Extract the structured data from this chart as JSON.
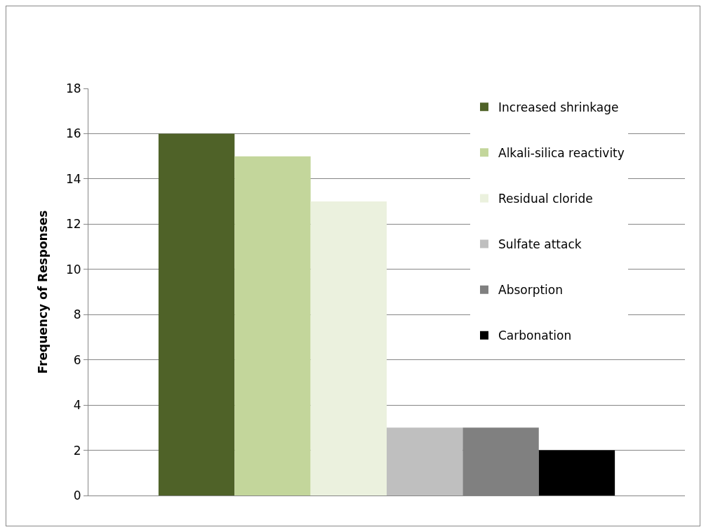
{
  "chart_data": {
    "type": "bar",
    "ylabel": "Frequency of Responses",
    "categories": [
      null
    ],
    "series": [
      {
        "name": "Increased shrinkage",
        "color": "#4f6228",
        "values": [
          16
        ]
      },
      {
        "name": "Alkali-silica reactivity",
        "color": "#c3d69b",
        "values": [
          15
        ]
      },
      {
        "name": "Residual cloride",
        "color": "#ebf1de",
        "values": [
          13
        ]
      },
      {
        "name": "Sulfate attack",
        "color": "#bfbfbf",
        "values": [
          3
        ]
      },
      {
        "name": "Absorption",
        "color": "#808080",
        "values": [
          3
        ]
      },
      {
        "name": "Carbonation",
        "color": "#000000",
        "values": [
          2
        ]
      }
    ],
    "ylim": [
      0,
      18
    ],
    "yticks": [
      0,
      2,
      4,
      6,
      8,
      10,
      12,
      14,
      16,
      18
    ],
    "grid": "y",
    "legend": "top right",
    "tick_labels": "y"
  }
}
